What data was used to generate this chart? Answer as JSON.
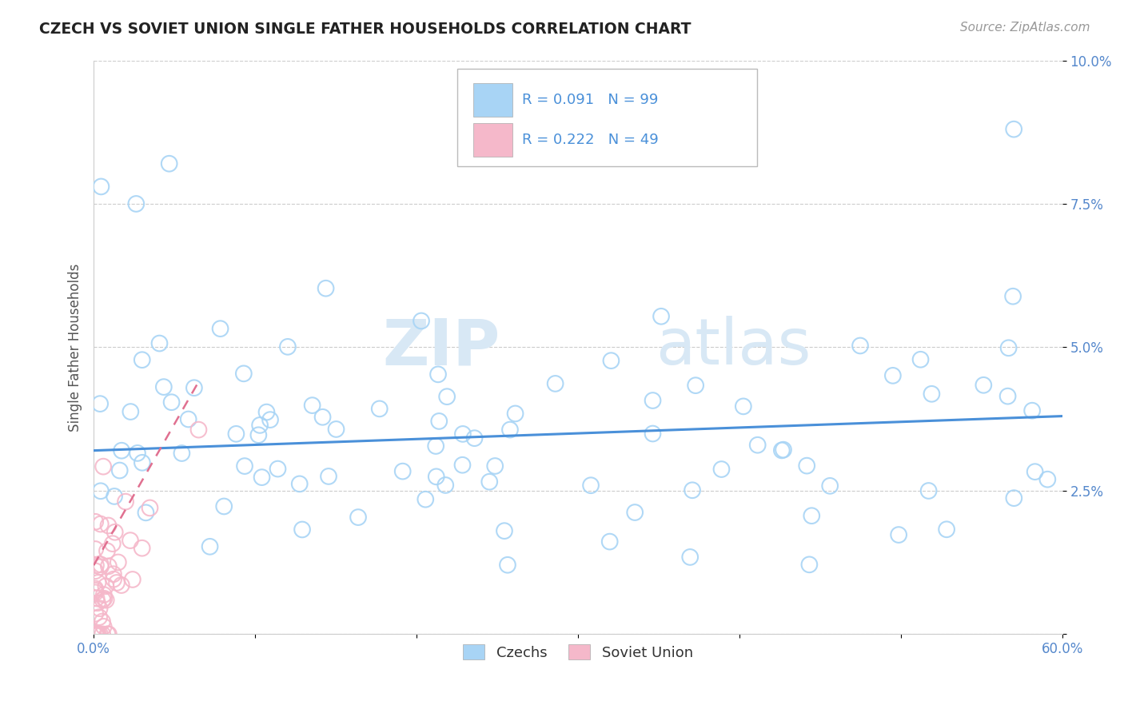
{
  "title": "CZECH VS SOVIET UNION SINGLE FATHER HOUSEHOLDS CORRELATION CHART",
  "source": "Source: ZipAtlas.com",
  "ylabel": "Single Father Households",
  "xlim": [
    0.0,
    0.6
  ],
  "ylim": [
    0.0,
    0.1
  ],
  "xticks": [
    0.0,
    0.1,
    0.2,
    0.3,
    0.4,
    0.5,
    0.6
  ],
  "xticklabels": [
    "0.0%",
    "",
    "",
    "",
    "",
    "",
    "60.0%"
  ],
  "yticks": [
    0.0,
    0.025,
    0.05,
    0.075,
    0.1
  ],
  "yticklabels_right": [
    "",
    "2.5%",
    "5.0%",
    "7.5%",
    "10.0%"
  ],
  "czech_color": "#a8d4f5",
  "soviet_color": "#f5b8ca",
  "czech_R": 0.091,
  "czech_N": 99,
  "soviet_R": 0.222,
  "soviet_N": 49,
  "legend_label_czech": "Czechs",
  "legend_label_soviet": "Soviet Union",
  "watermark_zip": "ZIP",
  "watermark_atlas": "atlas",
  "grid_color": "#cccccc",
  "line_color_czech": "#4a90d9",
  "line_color_soviet": "#e07090",
  "tick_color": "#5588cc",
  "title_color": "#222222",
  "source_color": "#999999"
}
